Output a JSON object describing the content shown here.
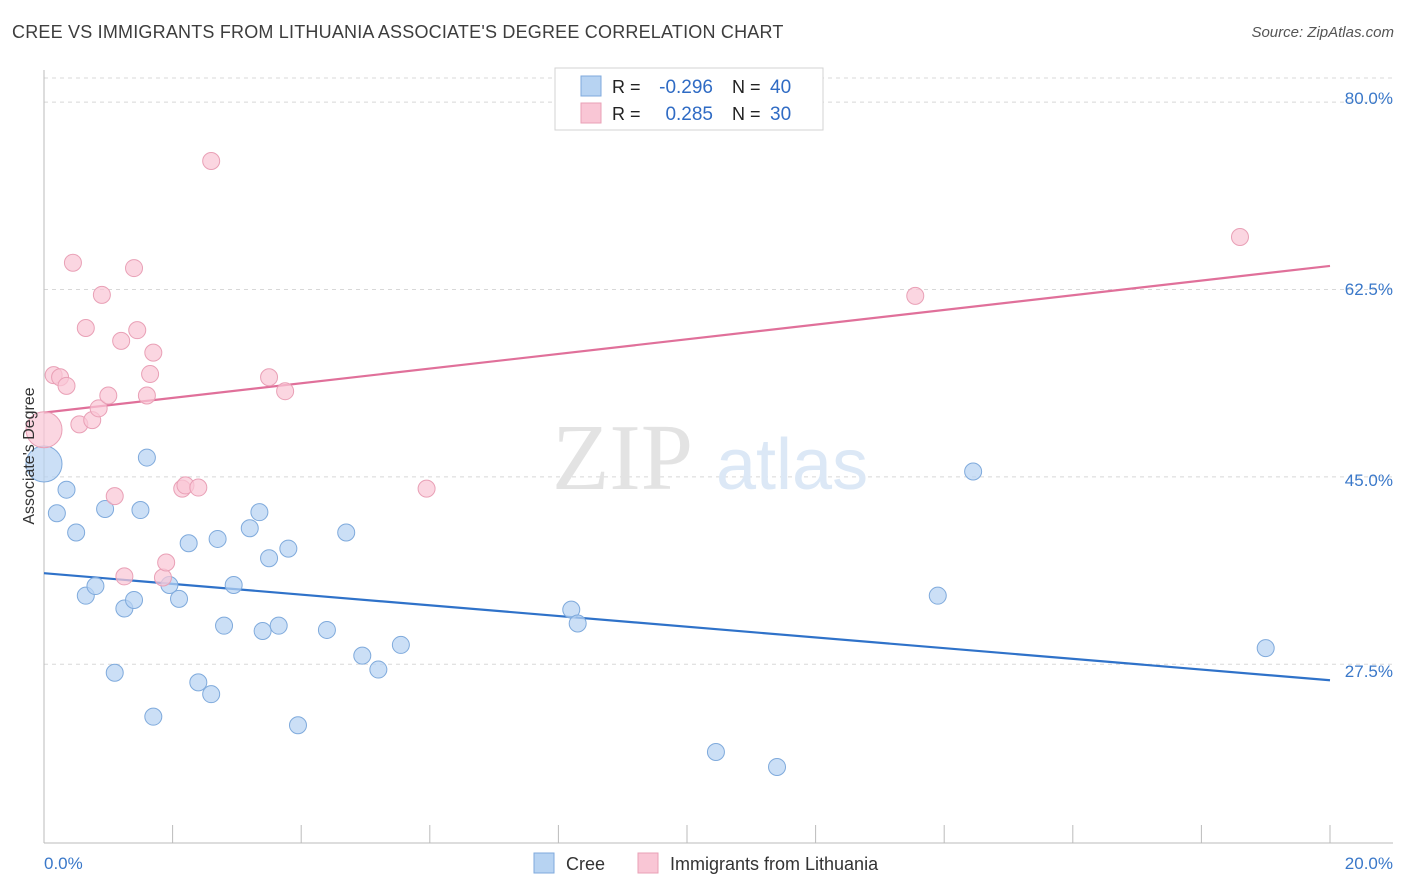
{
  "title": "CREE VS IMMIGRANTS FROM LITHUANIA ASSOCIATE'S DEGREE CORRELATION CHART",
  "source": "Source: ZipAtlas.com",
  "watermark": {
    "zip": "ZIP",
    "atlas": "atlas"
  },
  "legend_box": {
    "rows": [
      {
        "r_label": "R =",
        "r_value": "-0.296",
        "n_label": "N =",
        "n_value": "40",
        "fill": "#b7d3f2",
        "stroke": "#7faadc"
      },
      {
        "r_label": "R =",
        "r_value": " 0.285",
        "n_label": "N =",
        "n_value": "30",
        "fill": "#f9c6d5",
        "stroke": "#e9a0b6"
      }
    ]
  },
  "colors": {
    "cree_fill": "#b7d3f2",
    "cree_stroke": "#7faadc",
    "cree_line": "#2f72c9",
    "lith_fill": "#f9c6d5",
    "lith_stroke": "#e9a0b6",
    "lith_line": "#e0709a",
    "grid": "#d8d8d8",
    "tick_label": "#3a78c9",
    "axis_label": "#333333",
    "value_text": "#2f6bc4"
  },
  "chart_data": {
    "type": "scatter",
    "title": "CREE VS IMMIGRANTS FROM LITHUANIA ASSOCIATE'S DEGREE CORRELATION CHART",
    "xlabel": "",
    "ylabel": "Associate's Degree",
    "xlim": [
      0,
      20
    ],
    "ylim": [
      10.8,
      83.0
    ],
    "x_tick_labels": [
      "0.0%",
      "20.0%"
    ],
    "y_ticks": [
      27.5,
      45.0,
      62.5,
      80.0
    ],
    "y_tick_labels": [
      "27.5%",
      "45.0%",
      "62.5%",
      "80.0%"
    ],
    "grid": true,
    "legend_position": "bottom-center",
    "series": [
      {
        "name": "Cree",
        "trend": {
          "x": [
            0,
            20
          ],
          "y": [
            36.0,
            26.0
          ]
        },
        "points": [
          {
            "x": 0.0,
            "y": 46.2,
            "big": true
          },
          {
            "x": 0.2,
            "y": 41.6
          },
          {
            "x": 0.35,
            "y": 43.8
          },
          {
            "x": 0.5,
            "y": 39.8
          },
          {
            "x": 0.65,
            "y": 33.9
          },
          {
            "x": 0.8,
            "y": 34.8
          },
          {
            "x": 0.95,
            "y": 42.0
          },
          {
            "x": 1.1,
            "y": 26.7
          },
          {
            "x": 1.25,
            "y": 32.7
          },
          {
            "x": 1.4,
            "y": 33.5
          },
          {
            "x": 1.5,
            "y": 41.9
          },
          {
            "x": 1.6,
            "y": 46.8
          },
          {
            "x": 1.7,
            "y": 22.6
          },
          {
            "x": 1.95,
            "y": 34.9
          },
          {
            "x": 2.1,
            "y": 33.6
          },
          {
            "x": 2.25,
            "y": 38.8
          },
          {
            "x": 2.4,
            "y": 25.8
          },
          {
            "x": 2.6,
            "y": 24.7
          },
          {
            "x": 2.7,
            "y": 39.2
          },
          {
            "x": 2.8,
            "y": 31.1
          },
          {
            "x": 2.95,
            "y": 34.9
          },
          {
            "x": 3.2,
            "y": 40.2
          },
          {
            "x": 3.35,
            "y": 41.7
          },
          {
            "x": 3.4,
            "y": 30.6
          },
          {
            "x": 3.5,
            "y": 37.4
          },
          {
            "x": 3.65,
            "y": 31.1
          },
          {
            "x": 3.8,
            "y": 38.3
          },
          {
            "x": 3.95,
            "y": 21.8
          },
          {
            "x": 4.4,
            "y": 30.7
          },
          {
            "x": 4.7,
            "y": 39.8
          },
          {
            "x": 4.95,
            "y": 28.3
          },
          {
            "x": 5.2,
            "y": 27.0
          },
          {
            "x": 5.55,
            "y": 29.3
          },
          {
            "x": 8.2,
            "y": 32.6
          },
          {
            "x": 8.3,
            "y": 31.3
          },
          {
            "x": 10.45,
            "y": 19.3
          },
          {
            "x": 11.4,
            "y": 17.9
          },
          {
            "x": 13.9,
            "y": 33.9
          },
          {
            "x": 14.45,
            "y": 45.5
          },
          {
            "x": 19.0,
            "y": 29.0
          }
        ]
      },
      {
        "name": "Immigrants from Lithuania",
        "trend": {
          "x": [
            0,
            20
          ],
          "y": [
            51.0,
            64.7
          ]
        },
        "points": [
          {
            "x": 0.0,
            "y": 49.4,
            "big": true
          },
          {
            "x": 0.15,
            "y": 54.5
          },
          {
            "x": 0.25,
            "y": 54.3
          },
          {
            "x": 0.35,
            "y": 53.5
          },
          {
            "x": 0.45,
            "y": 65.0
          },
          {
            "x": 0.55,
            "y": 49.9
          },
          {
            "x": 0.65,
            "y": 58.9
          },
          {
            "x": 0.75,
            "y": 50.3
          },
          {
            "x": 0.85,
            "y": 51.4
          },
          {
            "x": 0.9,
            "y": 62.0
          },
          {
            "x": 1.0,
            "y": 52.6
          },
          {
            "x": 1.1,
            "y": 43.2
          },
          {
            "x": 1.2,
            "y": 57.7
          },
          {
            "x": 1.25,
            "y": 35.7
          },
          {
            "x": 1.4,
            "y": 64.5
          },
          {
            "x": 1.45,
            "y": 58.7
          },
          {
            "x": 1.6,
            "y": 52.6
          },
          {
            "x": 1.65,
            "y": 54.6
          },
          {
            "x": 1.7,
            "y": 56.6
          },
          {
            "x": 1.85,
            "y": 35.6
          },
          {
            "x": 1.9,
            "y": 37.0
          },
          {
            "x": 2.15,
            "y": 43.9
          },
          {
            "x": 2.2,
            "y": 44.2
          },
          {
            "x": 2.4,
            "y": 44.0
          },
          {
            "x": 2.6,
            "y": 74.5
          },
          {
            "x": 3.5,
            "y": 54.3
          },
          {
            "x": 3.75,
            "y": 53.0
          },
          {
            "x": 5.95,
            "y": 43.9
          },
          {
            "x": 13.55,
            "y": 61.9
          },
          {
            "x": 18.6,
            "y": 67.4
          }
        ]
      }
    ]
  }
}
